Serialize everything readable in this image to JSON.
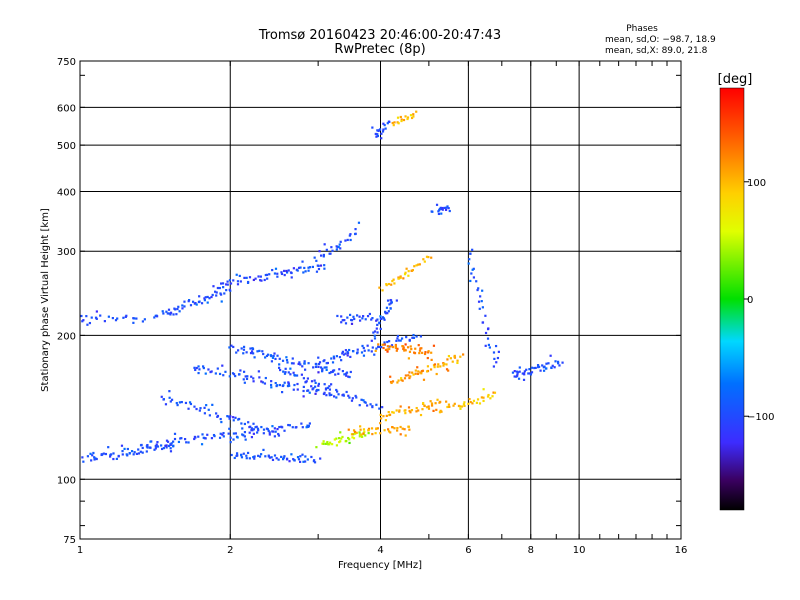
{
  "chart_data": {
    "type": "scatter",
    "title": "Tromsø 20160423 20:46:00-20:47:43",
    "subtitle": "RwPretec (8p)",
    "xlabel": "Frequency [MHz]",
    "ylabel": "Stationary phase Virtual Height [km]",
    "x_scale": "log",
    "y_scale": "log",
    "xlim": [
      1,
      16
    ],
    "ylim": [
      75,
      750
    ],
    "x_ticks": [
      1,
      2,
      4,
      6,
      8,
      10,
      16
    ],
    "x_tick_labels": [
      "1",
      "2",
      "4",
      "6",
      "8",
      "10",
      "16"
    ],
    "x_gridlines": [
      2,
      4,
      6,
      8,
      10
    ],
    "y_ticks": [
      75,
      100,
      200,
      300,
      400,
      500,
      600,
      750
    ],
    "y_tick_labels": [
      "75",
      "100",
      "200",
      "300",
      "400",
      "500",
      "600",
      "750"
    ],
    "y_gridlines": [
      100,
      200,
      300,
      400,
      500,
      600
    ],
    "grid": true,
    "phase_box": {
      "title": "Phases",
      "line_o": "mean, sd,O: −98.7, 18.9",
      "line_x": "mean, sd,X:  89.0, 21.8"
    },
    "colorbar": {
      "label": "[deg]",
      "range": [
        -180,
        180
      ],
      "ticks": [
        100,
        0,
        -100
      ],
      "tick_labels": [
        "100",
        "0",
        "−100"
      ],
      "colormap": "rainbow"
    },
    "traces": [
      {
        "x0": 1.0,
        "x1": 1.55,
        "h0": 110,
        "h1": 118,
        "phase": -98,
        "n": 45
      },
      {
        "x0": 1.3,
        "x1": 2.9,
        "h0": 117,
        "h1": 130,
        "phase": -98,
        "n": 70
      },
      {
        "x0": 2.0,
        "x1": 3.0,
        "h0": 112,
        "h1": 110,
        "phase": -98,
        "n": 40
      },
      {
        "x0": 1.45,
        "x1": 2.5,
        "h0": 148,
        "h1": 125,
        "phase": -98,
        "n": 45
      },
      {
        "x0": 1.7,
        "x1": 3.2,
        "h0": 172,
        "h1": 150,
        "phase": -98,
        "n": 55
      },
      {
        "x0": 2.0,
        "x1": 3.5,
        "h0": 190,
        "h1": 165,
        "phase": -98,
        "n": 55
      },
      {
        "x0": 2.5,
        "x1": 4.0,
        "h0": 170,
        "h1": 140,
        "phase": -98,
        "n": 45
      },
      {
        "x0": 3.0,
        "x1": 4.8,
        "h0": 175,
        "h1": 200,
        "phase": -98,
        "n": 50
      },
      {
        "x0": 1.0,
        "x1": 1.35,
        "h0": 217,
        "h1": 217,
        "phase": -98,
        "n": 20
      },
      {
        "x0": 1.4,
        "x1": 2.0,
        "h0": 220,
        "h1": 250,
        "phase": -98,
        "n": 40
      },
      {
        "x0": 1.9,
        "x1": 3.1,
        "h0": 255,
        "h1": 280,
        "phase": -98,
        "n": 50
      },
      {
        "x0": 3.0,
        "x1": 3.6,
        "h0": 290,
        "h1": 330,
        "phase": -98,
        "n": 20
      },
      {
        "x0": 3.3,
        "x1": 3.9,
        "h0": 218,
        "h1": 218,
        "phase": -98,
        "n": 20
      },
      {
        "x0": 3.9,
        "x1": 4.2,
        "h0": 200,
        "h1": 240,
        "phase": -98,
        "n": 25
      },
      {
        "x0": 7.3,
        "x1": 9.2,
        "h0": 165,
        "h1": 175,
        "phase": -98,
        "n": 35
      },
      {
        "x0": 3.9,
        "x1": 4.15,
        "h0": 520,
        "h1": 560,
        "phase": -98,
        "n": 15
      },
      {
        "x0": 5.1,
        "x1": 5.5,
        "h0": 360,
        "h1": 375,
        "phase": -98,
        "n": 12
      },
      {
        "x0": 6.0,
        "x1": 6.8,
        "h0": 300,
        "h1": 170,
        "phase": -98,
        "n": 25
      },
      {
        "x0": 3.0,
        "x1": 3.8,
        "h0": 118,
        "h1": 125,
        "phase": 45,
        "n": 30
      },
      {
        "x0": 3.5,
        "x1": 4.6,
        "h0": 125,
        "h1": 128,
        "phase": 110,
        "n": 30
      },
      {
        "x0": 4.0,
        "x1": 5.3,
        "h0": 135,
        "h1": 145,
        "phase": 105,
        "n": 30
      },
      {
        "x0": 4.2,
        "x1": 5.8,
        "h0": 160,
        "h1": 180,
        "phase": 110,
        "n": 40
      },
      {
        "x0": 4.0,
        "x1": 5.0,
        "h0": 190,
        "h1": 185,
        "phase": 125,
        "n": 35
      },
      {
        "x0": 5.3,
        "x1": 6.8,
        "h0": 140,
        "h1": 150,
        "phase": 95,
        "n": 25
      },
      {
        "x0": 4.0,
        "x1": 5.0,
        "h0": 250,
        "h1": 290,
        "phase": 100,
        "n": 25
      },
      {
        "x0": 4.2,
        "x1": 4.7,
        "h0": 550,
        "h1": 580,
        "phase": 100,
        "n": 15
      }
    ],
    "scatter_fraction": 0.35
  }
}
